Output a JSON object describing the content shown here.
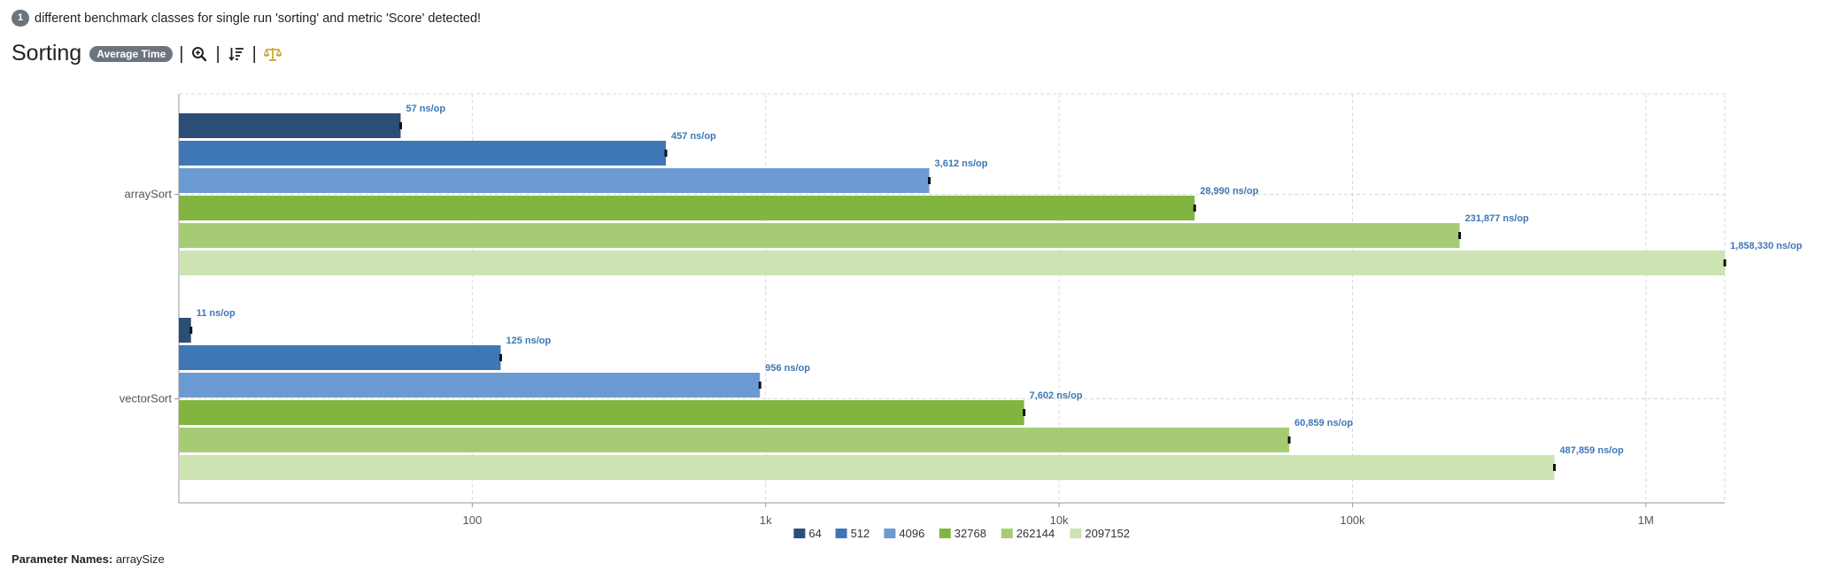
{
  "notice": {
    "count": "1",
    "text": "different benchmark classes for single run 'sorting' and metric 'Score' detected!"
  },
  "header": {
    "title": "Sorting",
    "mode_badge": "Average Time"
  },
  "toolbar": {
    "icons": [
      "zoom-in-icon",
      "sort-descending-icon",
      "balance-scale-icon"
    ]
  },
  "footer": {
    "label": "Parameter Names:",
    "value": "arraySize"
  },
  "colors": {
    "series": [
      "#2b4e77",
      "#3f77b6",
      "#6b9bd2",
      "#82b540",
      "#a5cc75",
      "#cde3b1"
    ],
    "label": "#3f77b6",
    "grid": "#d9d9d9",
    "axis": "#999999"
  },
  "chart_data": {
    "type": "bar",
    "orientation": "horizontal",
    "xscale": "log",
    "xlim": [
      10,
      1858330
    ],
    "categories": [
      "arraySort",
      "vectorSort"
    ],
    "xticks": [
      100,
      1000,
      10000,
      100000,
      1000000
    ],
    "xtick_labels": [
      "100",
      "1k",
      "10k",
      "100k",
      "1M"
    ],
    "legend_position": "bottom-center",
    "grid": true,
    "series": [
      {
        "name": "64",
        "values": [
          57,
          11
        ],
        "labels": [
          "57 ns/op",
          "11 ns/op"
        ]
      },
      {
        "name": "512",
        "values": [
          457,
          125
        ],
        "labels": [
          "457 ns/op",
          "125 ns/op"
        ]
      },
      {
        "name": "4096",
        "values": [
          3612,
          956
        ],
        "labels": [
          "3,612 ns/op",
          "956 ns/op"
        ]
      },
      {
        "name": "32768",
        "values": [
          28990,
          7602
        ],
        "labels": [
          "28,990 ns/op",
          "7,602 ns/op"
        ]
      },
      {
        "name": "262144",
        "values": [
          231877,
          60859
        ],
        "labels": [
          "231,877 ns/op",
          "60,859 ns/op"
        ]
      },
      {
        "name": "2097152",
        "values": [
          1858330,
          487859
        ],
        "labels": [
          "1,858,330 ns/op",
          "487,859 ns/op"
        ]
      }
    ]
  }
}
